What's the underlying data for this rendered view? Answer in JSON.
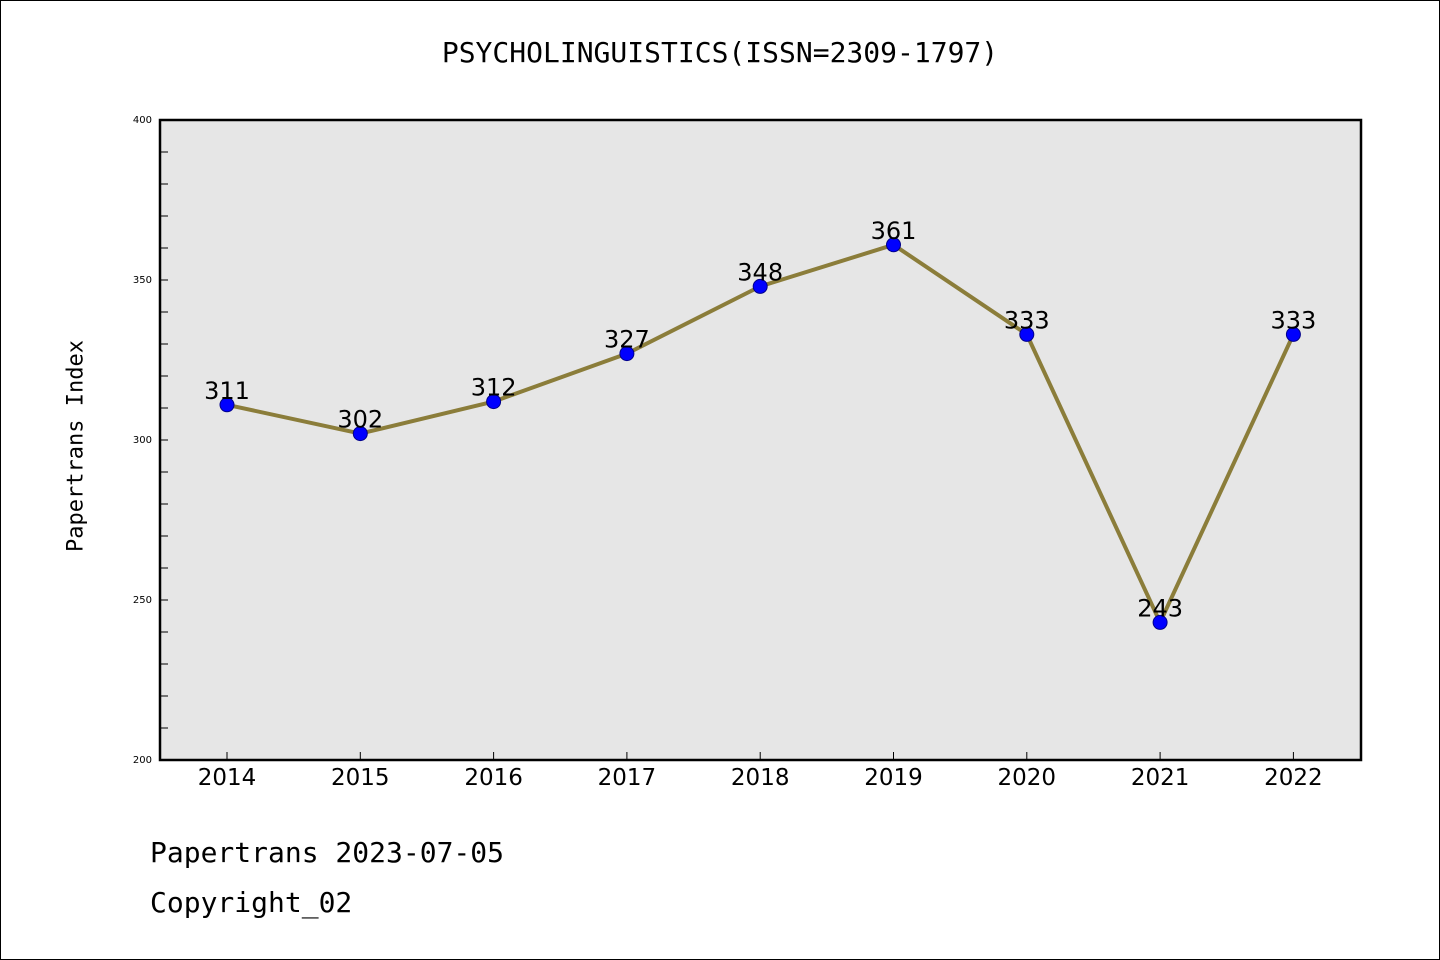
{
  "chart_data": {
    "type": "line",
    "title": "PSYCHOLINGUISTICS(ISSN=2309-1797)",
    "xlabel": "",
    "ylabel": "Papertrans Index",
    "categories": [
      "2014",
      "2015",
      "2016",
      "2017",
      "2018",
      "2019",
      "2020",
      "2021",
      "2022"
    ],
    "series": [
      {
        "values": [
          311,
          302,
          312,
          327,
          348,
          361,
          333,
          243,
          333
        ]
      }
    ],
    "ylim": [
      200,
      400
    ],
    "yticks": [
      "200",
      "250",
      "300",
      "350",
      "400"
    ],
    "grid": false,
    "colors": {
      "line": "#8b7d3a",
      "marker": "#0000ff",
      "plot_bg": "#e6e6e6"
    }
  },
  "footer": {
    "line1": "Papertrans 2023-07-05",
    "line2": "Copyright_02"
  }
}
